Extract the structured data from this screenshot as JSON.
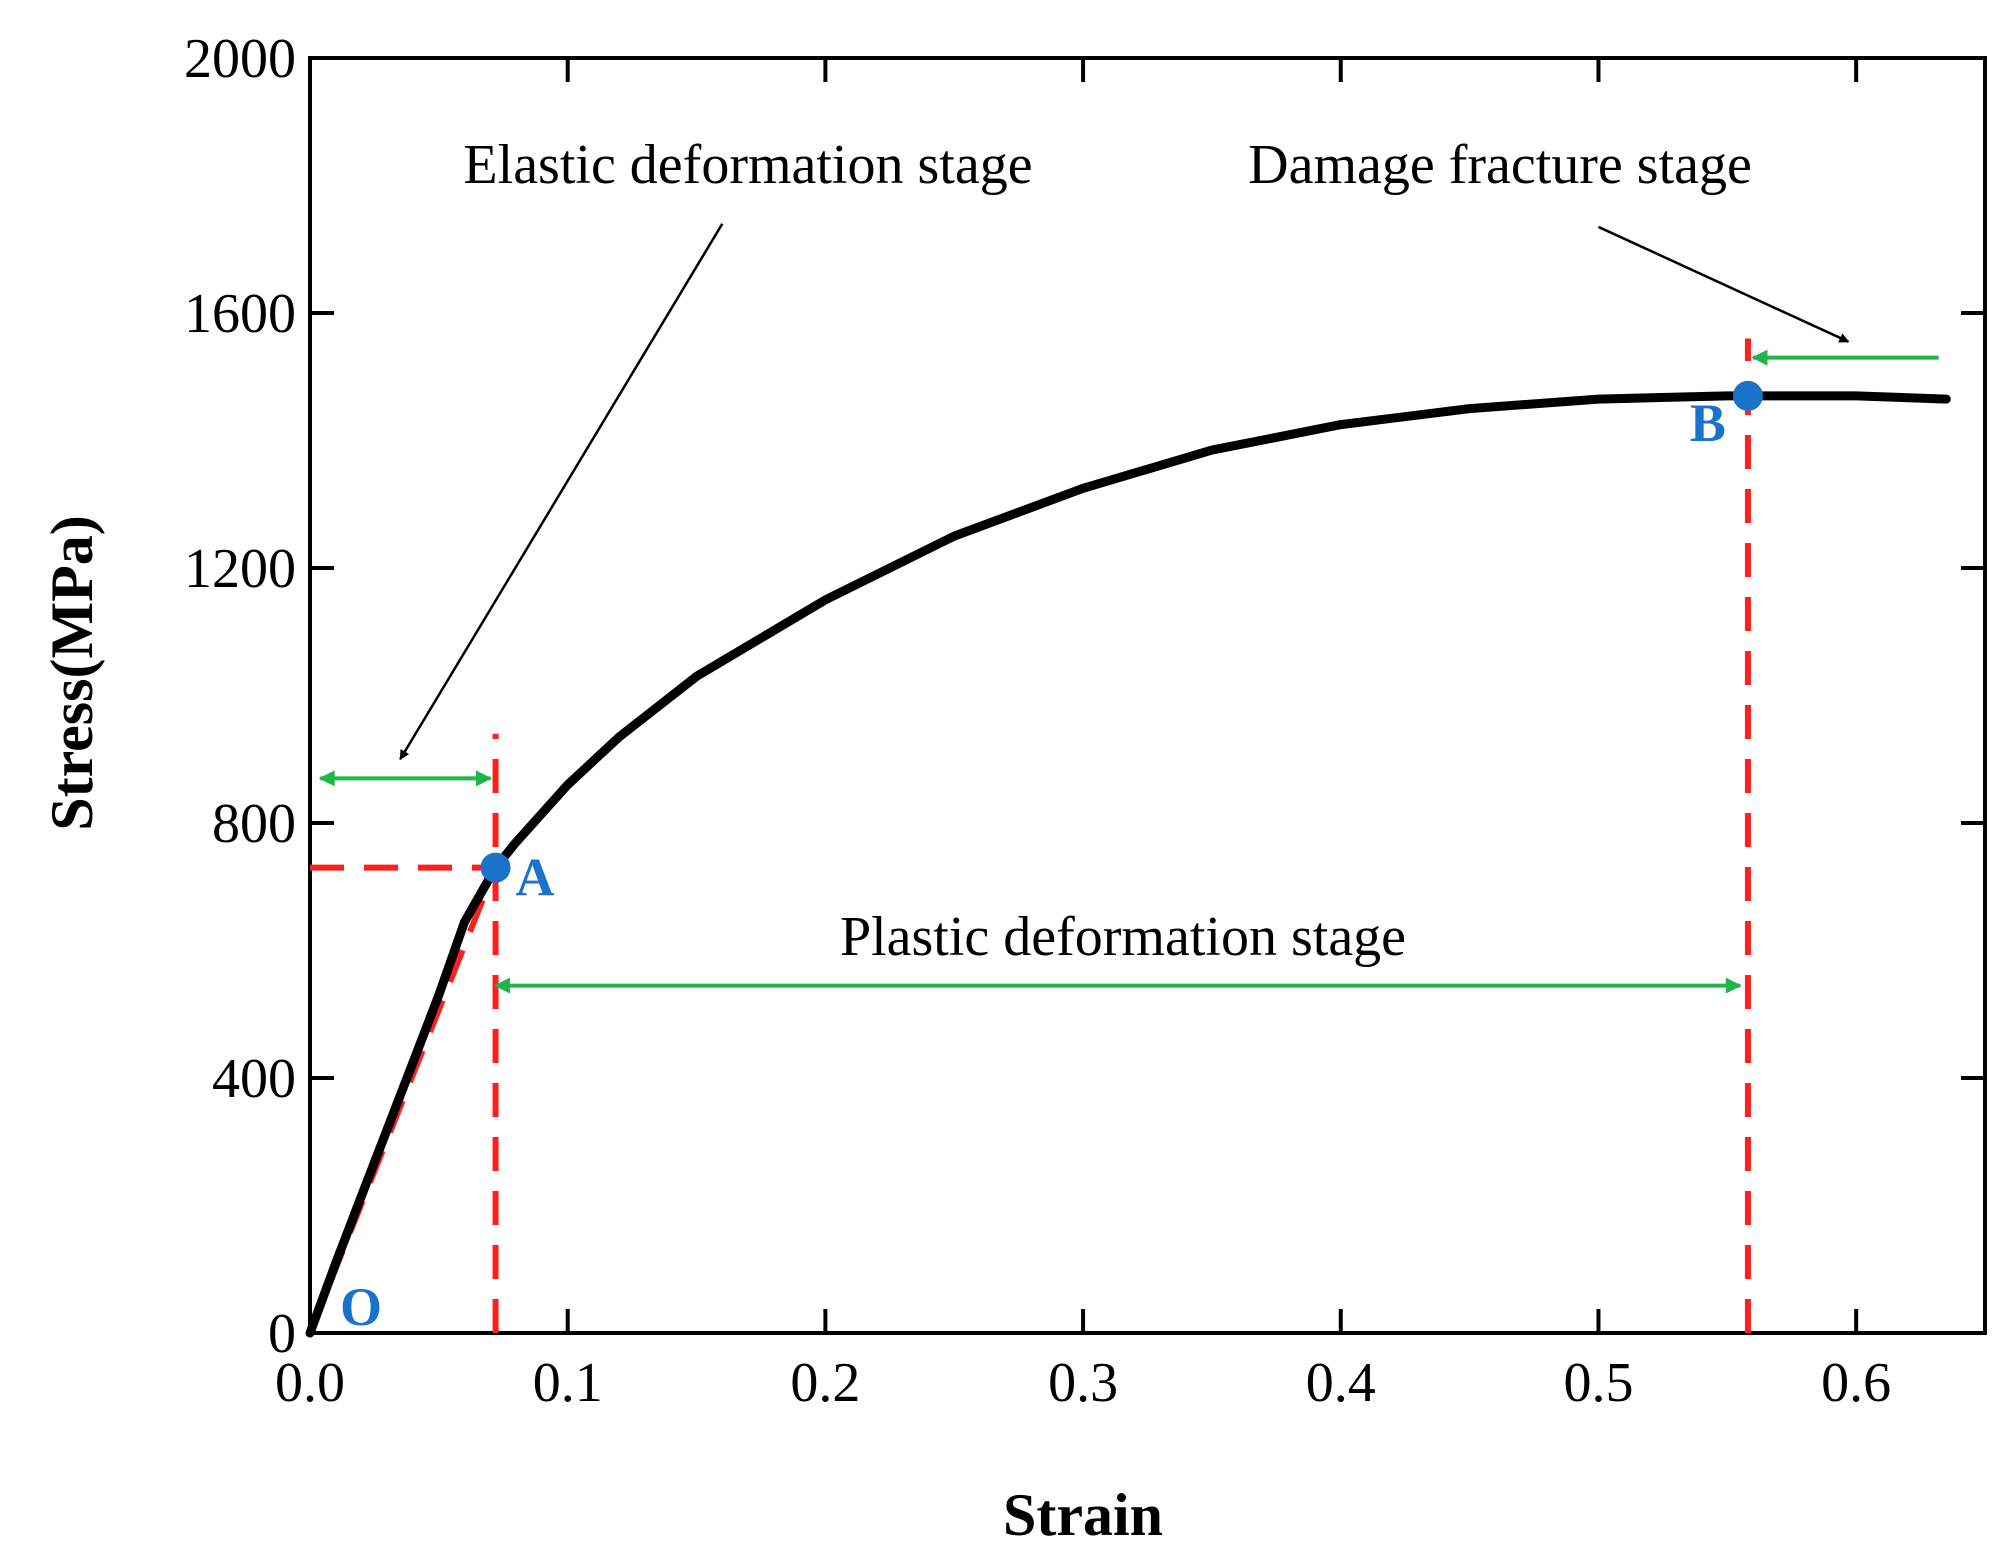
{
  "chart_data": {
    "type": "line",
    "xlabel": "Strain",
    "ylabel": "Stress(MPa)",
    "xlim": [
      0.0,
      0.65
    ],
    "ylim": [
      0,
      2000
    ],
    "x_ticks": [
      "0.0",
      "0.1",
      "0.2",
      "0.3",
      "0.4",
      "0.5",
      "0.6"
    ],
    "x_tick_values": [
      0.0,
      0.1,
      0.2,
      0.3,
      0.4,
      0.5,
      0.6
    ],
    "y_ticks": [
      "0",
      "400",
      "800",
      "1200",
      "1600",
      "2000"
    ],
    "y_tick_values": [
      0,
      400,
      800,
      1200,
      1600,
      2000
    ],
    "grid": false,
    "series": [
      {
        "color": "#000000",
        "x": [
          0.0,
          0.01,
          0.02,
          0.03,
          0.04,
          0.05,
          0.06,
          0.072,
          0.08,
          0.1,
          0.12,
          0.15,
          0.2,
          0.25,
          0.3,
          0.35,
          0.4,
          0.45,
          0.5,
          0.55,
          0.6,
          0.635
        ],
        "y": [
          0,
          110,
          215,
          320,
          425,
          530,
          645,
          730,
          770,
          860,
          935,
          1030,
          1150,
          1250,
          1325,
          1385,
          1425,
          1450,
          1465,
          1470,
          1470,
          1465
        ]
      }
    ],
    "reference_lines": {
      "color": "#ff1f1f",
      "elastic_fit": {
        "x": [
          0.0,
          0.072
        ],
        "y": [
          0,
          730
        ]
      },
      "yield_horizontal": {
        "x": [
          0.0,
          0.072
        ],
        "y": [
          730,
          730
        ]
      },
      "vertical_A": {
        "x": [
          0.072,
          0.072
        ],
        "y": [
          0,
          940
        ]
      },
      "vertical_B": {
        "x": [
          0.558,
          0.558
        ],
        "y": [
          0,
          1560
        ]
      }
    },
    "points": [
      {
        "label": "O",
        "x": 0.0,
        "y": 0,
        "marker": false
      },
      {
        "label": "A",
        "x": 0.072,
        "y": 730,
        "marker": true
      },
      {
        "label": "B",
        "x": 0.558,
        "y": 1470,
        "marker": true
      }
    ],
    "point_color": "#1a73c9",
    "annotations": [
      {
        "text": "Elastic deformation stage",
        "x": 0.17,
        "y": 1835
      },
      {
        "text": "Damage fracture stage",
        "x": 0.46,
        "y": 1835
      },
      {
        "text": "Plastic deformation stage",
        "x": 0.315,
        "y": 610
      }
    ],
    "pointer_arrows": [
      {
        "from": [
          0.16,
          1740
        ],
        "to": [
          0.035,
          900
        ]
      },
      {
        "from": [
          0.5,
          1735
        ],
        "to": [
          0.597,
          1555
        ]
      }
    ],
    "range_arrows": {
      "color": "#1fb54a",
      "elastic": {
        "x": [
          0.004,
          0.07
        ],
        "y": 870
      },
      "plastic": {
        "x": [
          0.072,
          0.555
        ],
        "y": 545
      },
      "fracture": {
        "x": [
          0.632,
          0.56
        ],
        "y": 1530
      }
    }
  }
}
